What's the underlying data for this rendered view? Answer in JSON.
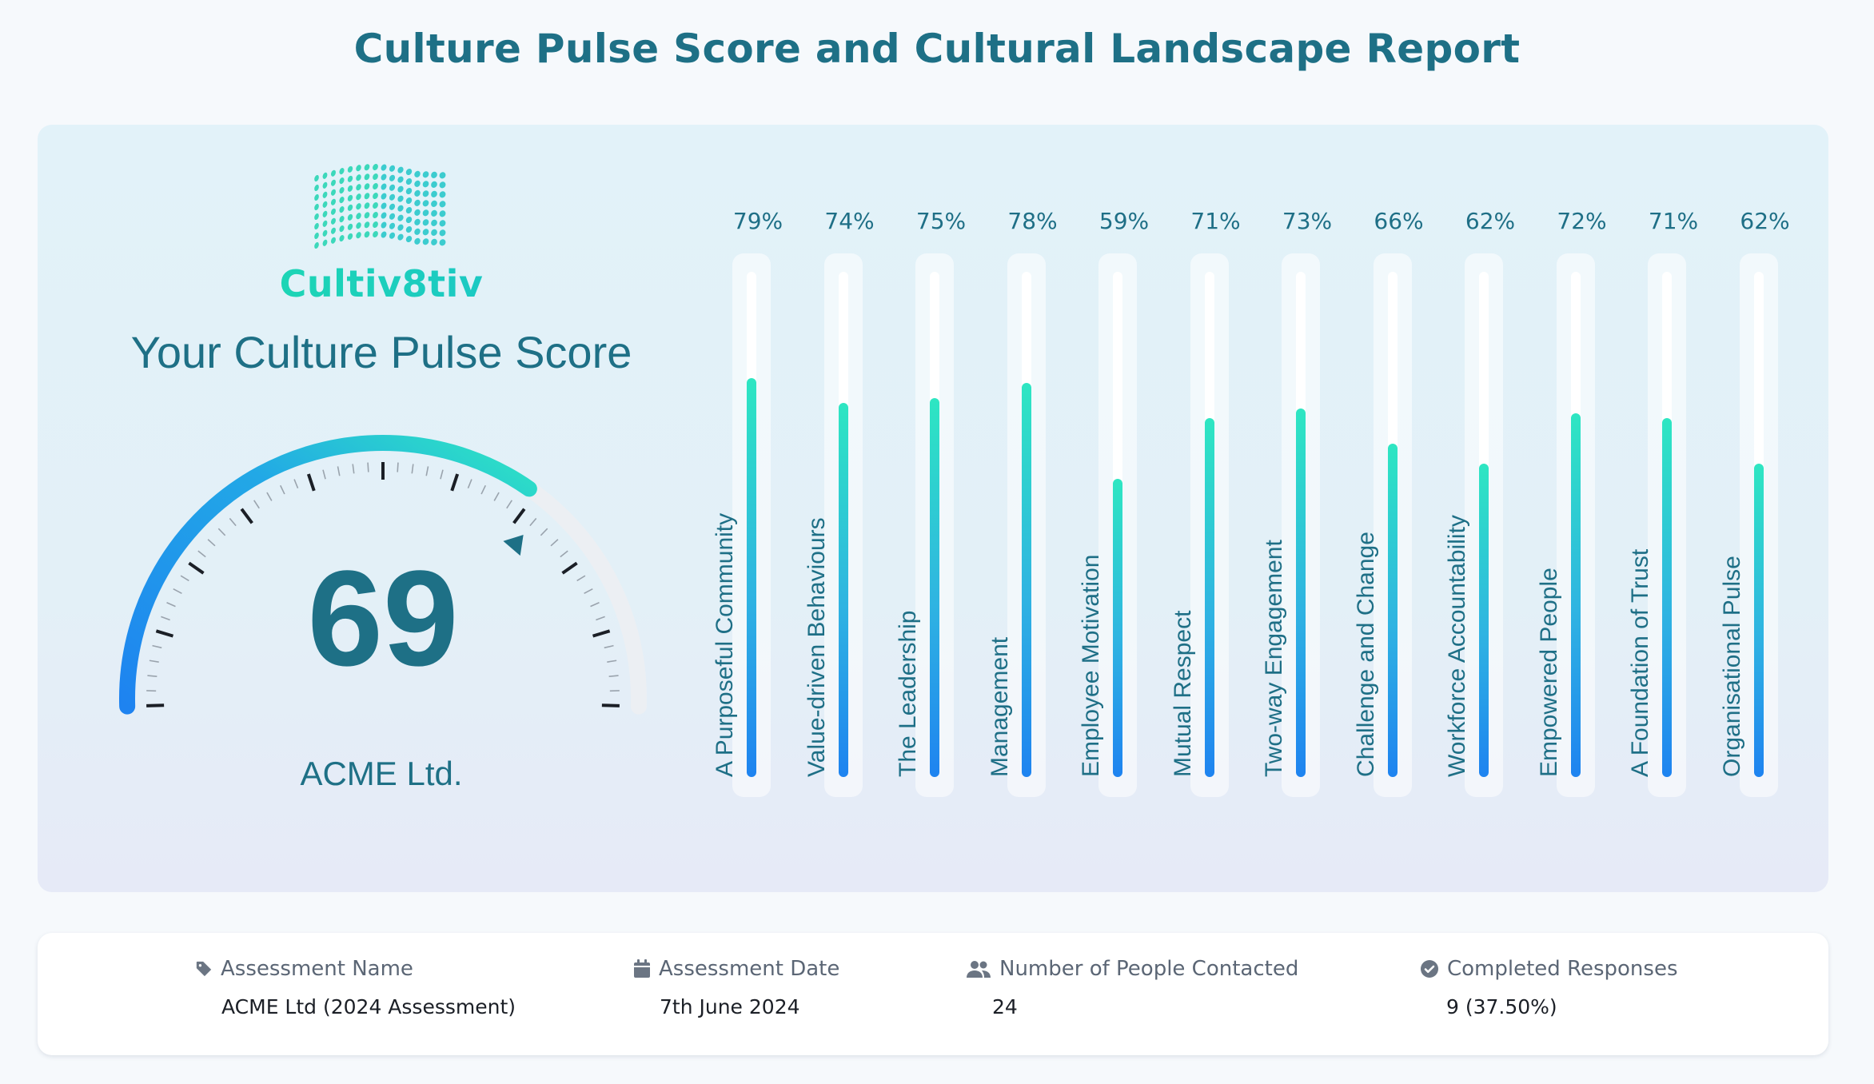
{
  "page": {
    "title": "Culture Pulse Score and Cultural Landscape Report"
  },
  "brand": {
    "name": "Cultiv8tiv",
    "logo_icon": "dotted-wave-logo"
  },
  "score": {
    "heading": "Your Culture Pulse Score",
    "value": "69",
    "gauge_level": 69,
    "company": "ACME Ltd."
  },
  "colors": {
    "title": "#1e7086",
    "bar_top": "#2ee6c2",
    "bar_bottom": "#1e83f0",
    "gauge_start": "#1e83f0",
    "gauge_end": "#2ee6c2"
  },
  "bars": [
    {
      "label": "A Purposeful Community",
      "pct_text": "79%",
      "value": 79
    },
    {
      "label": "Value-driven Behaviours",
      "pct_text": "74%",
      "value": 74
    },
    {
      "label": "The Leadership",
      "pct_text": "75%",
      "value": 75
    },
    {
      "label": "Management",
      "pct_text": "78%",
      "value": 78
    },
    {
      "label": "Employee Motivation",
      "pct_text": "59%",
      "value": 59
    },
    {
      "label": "Mutual Respect",
      "pct_text": "71%",
      "value": 71
    },
    {
      "label": "Two-way Engagement",
      "pct_text": "73%",
      "value": 73
    },
    {
      "label": "Challenge and Change",
      "pct_text": "66%",
      "value": 66
    },
    {
      "label": "Workforce Accountability",
      "pct_text": "62%",
      "value": 62
    },
    {
      "label": "Empowered People",
      "pct_text": "72%",
      "value": 72
    },
    {
      "label": "A Foundation of Trust",
      "pct_text": "71%",
      "value": 71
    },
    {
      "label": "Organisational Pulse",
      "pct_text": "62%",
      "value": 62
    }
  ],
  "info": {
    "assessment_name": {
      "label": "Assessment Name",
      "value": "ACME Ltd (2024 Assessment)",
      "icon": "tag-icon"
    },
    "assessment_date": {
      "label": "Assessment Date",
      "value": "7th June 2024",
      "icon": "calendar-icon"
    },
    "people_contacted": {
      "label": "Number of People Contacted",
      "value": "24",
      "icon": "people-icon"
    },
    "completed": {
      "label": "Completed Responses",
      "value": "9 (37.50%)",
      "icon": "check-circle-icon"
    }
  }
}
